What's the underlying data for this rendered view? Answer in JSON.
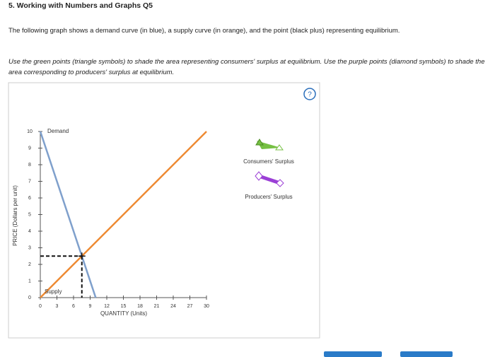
{
  "header": {
    "title": "5. Working with Numbers and Graphs Q5"
  },
  "intro": "The following graph shows a demand curve (in blue), a supply curve (in orange), and the point (black plus) representing equilibrium.",
  "instructions": "Use the green points (triangle symbols) to shade the area representing consumers' surplus at equilibrium. Use the purple points (diamond symbols) to shade the area corresponding to producers' surplus at equilibrium.",
  "help_label": "?",
  "tools": [
    {
      "label": "Consumers' Surplus",
      "color": "#76c043",
      "marker": "triangle"
    },
    {
      "label": "Producers' Surplus",
      "color": "#9b3fd6",
      "marker": "diamond"
    }
  ],
  "chart_data": {
    "type": "line",
    "x_label": "QUANTITY (Units)",
    "y_label": "PRICE (Dollars per unit)",
    "xlim": [
      0,
      30
    ],
    "ylim": [
      0,
      10
    ],
    "xticks": [
      0,
      3,
      6,
      9,
      12,
      15,
      18,
      21,
      24,
      27,
      30
    ],
    "yticks": [
      0,
      1,
      2,
      3,
      4,
      5,
      6,
      7,
      8,
      9,
      10
    ],
    "series": [
      {
        "name": "Demand",
        "color": "#7fa0cc",
        "x": [
          0,
          10
        ],
        "values": [
          10,
          0
        ]
      },
      {
        "name": "Supply",
        "color": "#ee8a33",
        "x": [
          0,
          30
        ],
        "values": [
          0,
          10
        ]
      }
    ],
    "equilibrium": {
      "x": 7.5,
      "y": 2.5
    }
  }
}
